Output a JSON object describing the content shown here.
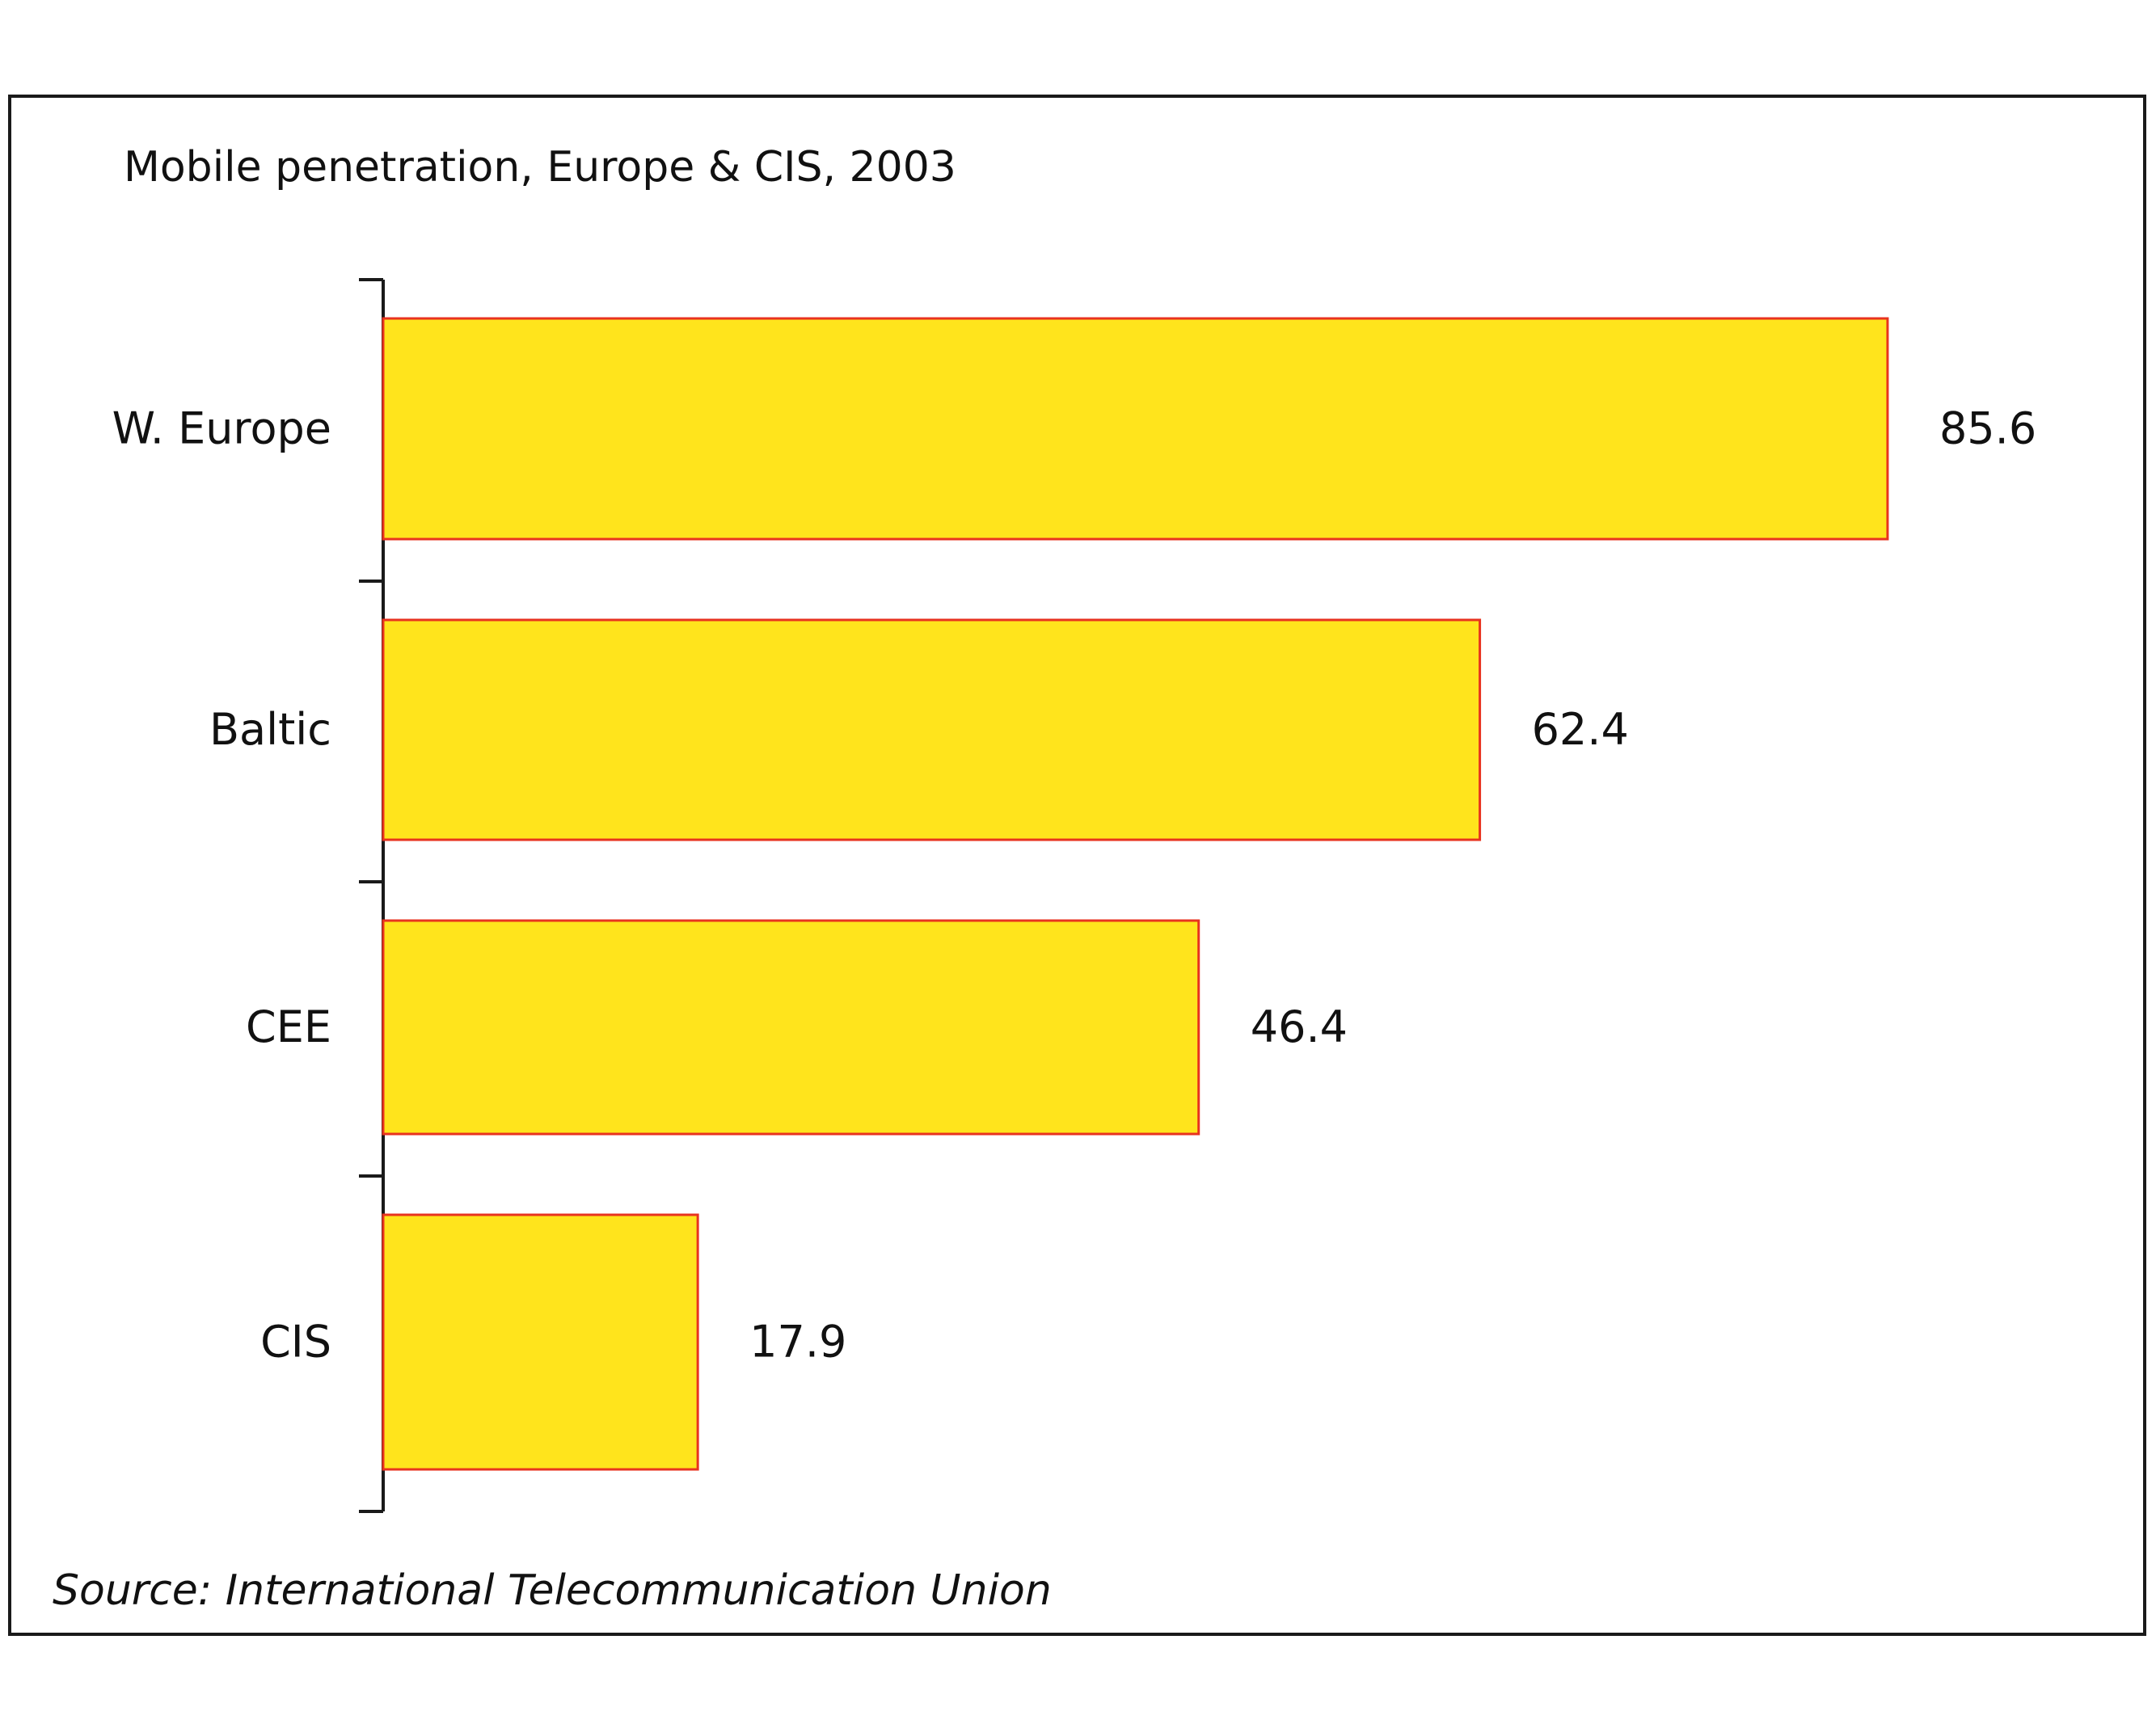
{
  "chart_data": {
    "type": "bar",
    "orientation": "horizontal",
    "title": "Mobile penetration, Europe & CIS, 2003",
    "categories": [
      "W. Europe",
      "Baltic",
      "CEE",
      "CIS"
    ],
    "values": [
      85.6,
      62.4,
      46.4,
      17.9
    ],
    "value_labels": [
      "85.6",
      "62.4",
      "46.4",
      "17.9"
    ],
    "xlabel": "",
    "ylabel": "",
    "xlim": [
      0,
      100
    ],
    "grid": false,
    "legend": "none",
    "source": "Source: International Telecommunication Union",
    "colors": {
      "bar_fill": "#FFE41C",
      "bar_stroke": "#E8331F",
      "axis": "#1a1a1a",
      "text": "#111111"
    }
  }
}
